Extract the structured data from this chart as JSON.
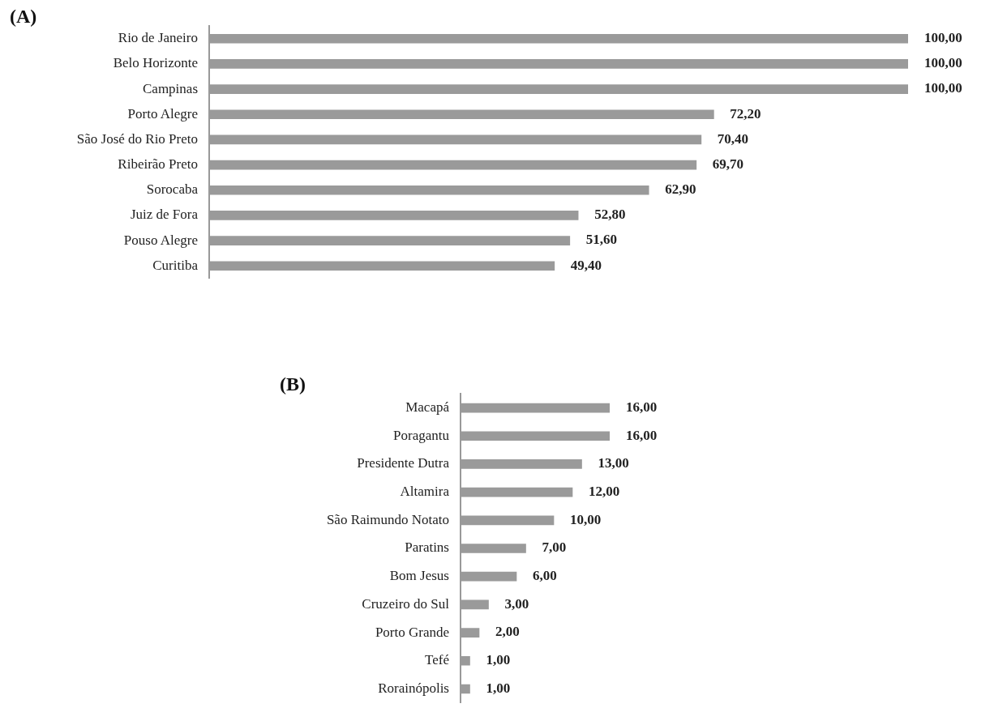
{
  "chart_data": [
    {
      "type": "bar",
      "title": "(A)",
      "orientation": "horizontal",
      "tick_labels": "y",
      "categories": [
        "Rio de Janeiro",
        "Belo Horizonte",
        "Campinas",
        "Porto Alegre",
        "São José do Rio Preto",
        "Ribeirão Preto",
        "Sorocaba",
        "Juiz de Fora",
        "Pouso Alegre",
        "Curitiba"
      ],
      "values": [
        100,
        100,
        100,
        72.2,
        70.4,
        69.7,
        62.9,
        52.8,
        51.6,
        49.4
      ],
      "value_labels": [
        "100,00",
        "100,00",
        "100,00",
        "72,20",
        "70,40",
        "69,70",
        "62,90",
        "52,80",
        "51,60",
        "49,40"
      ],
      "color": "#9a9a9a",
      "xlim": [
        0,
        100
      ]
    },
    {
      "type": "bar",
      "title": "(B)",
      "orientation": "horizontal",
      "tick_labels": "y",
      "categories": [
        "Macapá",
        "Poragantu",
        "Presidente Dutra",
        "Altamira",
        "São Raimundo Notato",
        "Paratins",
        "Bom Jesus",
        "Cruzeiro do Sul",
        "Porto Grande",
        "Tefé",
        "Rorainópolis"
      ],
      "values": [
        16,
        16,
        13,
        12,
        10,
        7,
        6,
        3,
        2,
        1,
        1
      ],
      "value_labels": [
        "16,00",
        "16,00",
        "13,00",
        "12,00",
        "10,00",
        "7,00",
        "6,00",
        "3,00",
        "2,00",
        "1,00",
        "1,00"
      ],
      "color": "#9a9a9a",
      "xlim": [
        0,
        16
      ]
    }
  ]
}
